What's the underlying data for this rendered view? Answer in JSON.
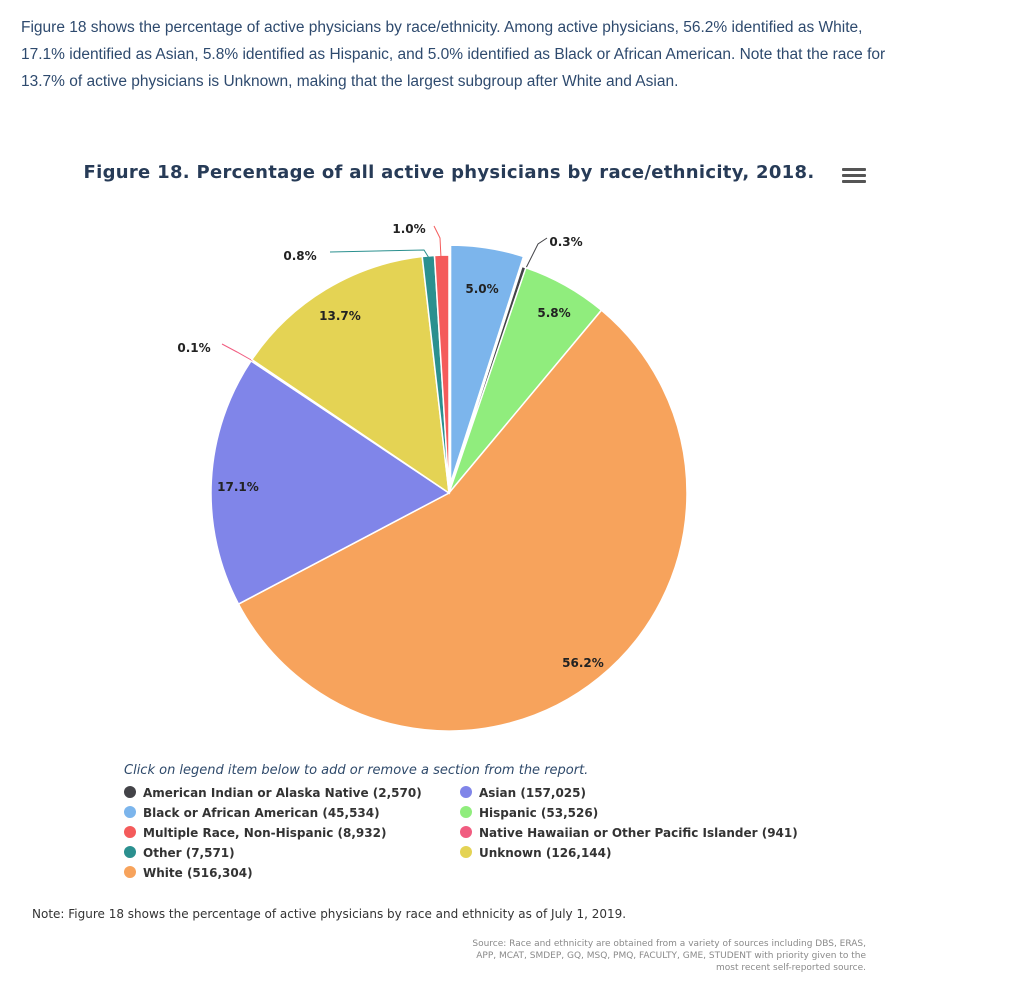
{
  "intro_text": "Figure 18 shows the percentage of active physicians by race/ethnicity. Among active physicians, 56.2% identified as White, 17.1% identified as Asian, 5.8% identified as Hispanic, and 5.0% identified as Black or African American. Note that the race for 13.7% of active physicians is Unknown, making that the largest subgroup after White and Asian.",
  "menu_icon": "hamburger-menu-icon",
  "legend_hint": "Click on legend item below to add or remove a section from the report.",
  "note": "Note: Figure 18 shows the percentage of active physicians by race and ethnicity as of July 1, 2019.",
  "source": "Source: Race and ethnicity are obtained from a variety of sources including DBS, ERAS, APP, MCAT, SMDEP, GQ, MSQ, PMQ, FACULTY, GME, STUDENT with priority given to the most recent self-reported source.",
  "chart_data": {
    "type": "pie",
    "title": "Figure 18. Percentage of all active physicians by race/ethnicity, 2018.",
    "slices": [
      {
        "name": "Black or African American",
        "count": 45534,
        "percent": 5.0,
        "label": "5.0%",
        "color": "#7cb5ec"
      },
      {
        "name": "American Indian or Alaska Native",
        "count": 2570,
        "percent": 0.3,
        "label": "0.3%",
        "color": "#434348"
      },
      {
        "name": "Hispanic",
        "count": 53526,
        "percent": 5.8,
        "label": "5.8%",
        "color": "#90ed7d"
      },
      {
        "name": "White",
        "count": 516304,
        "percent": 56.2,
        "label": "56.2%",
        "color": "#f7a35c"
      },
      {
        "name": "Asian",
        "count": 157025,
        "percent": 17.1,
        "label": "17.1%",
        "color": "#8085e9"
      },
      {
        "name": "Native Hawaiian or Other Pacific Islander",
        "count": 941,
        "percent": 0.1,
        "label": "0.1%",
        "color": "#f15c80"
      },
      {
        "name": "Unknown",
        "count": 126144,
        "percent": 13.7,
        "label": "13.7%",
        "color": "#e4d354"
      },
      {
        "name": "Other",
        "count": 7571,
        "percent": 0.8,
        "label": "0.8%",
        "color": "#2b908f"
      },
      {
        "name": "Multiple Race, Non-Hispanic",
        "count": 8932,
        "percent": 1.0,
        "label": "1.0%",
        "color": "#f45b5b"
      }
    ],
    "sliced": "Black or African American",
    "legend": [
      {
        "text": "American Indian or Alaska Native (2,570)",
        "color": "#434348"
      },
      {
        "text": "Asian (157,025)",
        "color": "#8085e9"
      },
      {
        "text": "Black or African American (45,534)",
        "color": "#7cb5ec"
      },
      {
        "text": "Hispanic (53,526)",
        "color": "#90ed7d"
      },
      {
        "text": "Multiple Race, Non-Hispanic (8,932)",
        "color": "#f45b5b"
      },
      {
        "text": "Native Hawaiian or Other Pacific Islander (941)",
        "color": "#f15c80"
      },
      {
        "text": "Other (7,571)",
        "color": "#2b908f"
      },
      {
        "text": "Unknown (126,144)",
        "color": "#e4d354"
      },
      {
        "text": "White (516,304)",
        "color": "#f7a35c"
      }
    ]
  }
}
